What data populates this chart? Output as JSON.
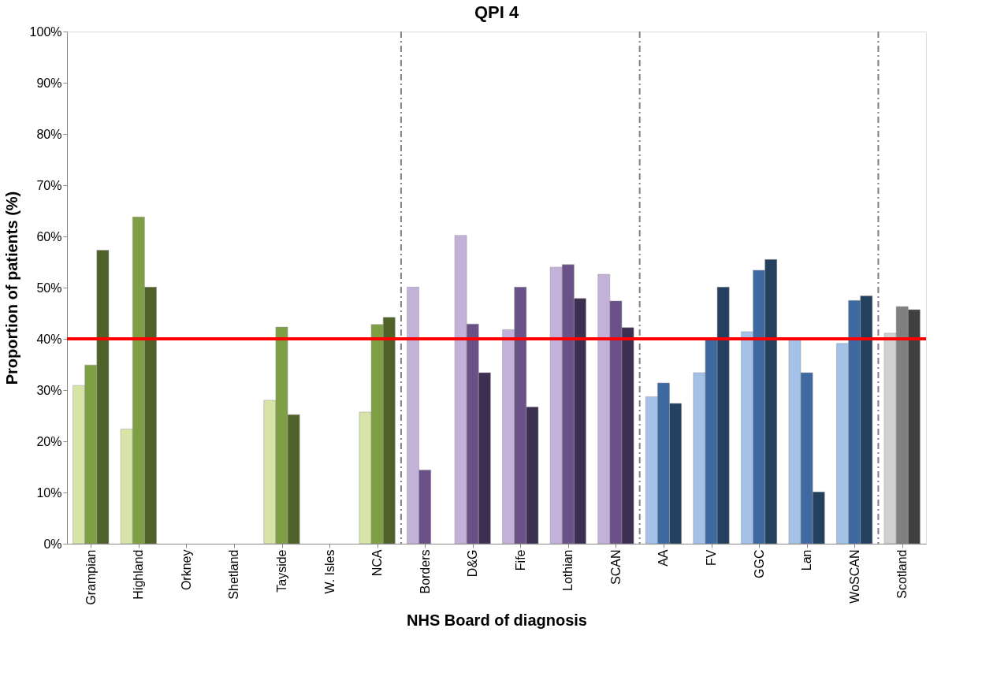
{
  "chart_data": {
    "type": "bar",
    "title": "QPI 4",
    "xlabel": "NHS Board of diagnosis",
    "ylabel": "Proportion of patients (%)",
    "categories": [
      "Grampian",
      "Highland",
      "Orkney",
      "Shetland",
      "Tayside",
      "W. Isles",
      "NCA",
      "Borders",
      "D&G",
      "Fife",
      "Lothian",
      "SCAN",
      "AA",
      "FV",
      "GGC",
      "Lan",
      "WoSCAN",
      "Scotland"
    ],
    "series": [
      {
        "values": [
          30.9,
          22.4,
          null,
          null,
          28.0,
          null,
          25.7,
          50.1,
          60.2,
          41.8,
          54.0,
          52.6,
          28.7,
          33.4,
          41.4,
          40.0,
          39.1,
          41.1
        ],
        "colors": [
          "#d7e4a8",
          "#d7e4a8",
          "#d7e4a8",
          "#d7e4a8",
          "#d7e4a8",
          "#d7e4a8",
          "#d7e4a8",
          "#c3b1d9",
          "#c3b1d9",
          "#c3b1d9",
          "#c3b1d9",
          "#c3b1d9",
          "#a4c2e8",
          "#a4c2e8",
          "#a4c2e8",
          "#a4c2e8",
          "#a4c2e8",
          "#d0d0d0"
        ]
      },
      {
        "values": [
          34.9,
          63.8,
          null,
          null,
          42.3,
          null,
          42.8,
          14.4,
          42.9,
          50.1,
          54.5,
          47.4,
          31.4,
          40.0,
          53.4,
          33.4,
          47.5,
          46.3
        ],
        "colors": [
          "#7f9f45",
          "#7f9f45",
          "#7f9f45",
          "#7f9f45",
          "#7f9f45",
          "#7f9f45",
          "#7f9f45",
          "#6a5289",
          "#6a5289",
          "#6a5289",
          "#6a5289",
          "#6a5289",
          "#3e6aa1",
          "#3e6aa1",
          "#3e6aa1",
          "#3e6aa1",
          "#3e6aa1",
          "#808080"
        ]
      },
      {
        "values": [
          57.3,
          50.1,
          null,
          null,
          25.2,
          null,
          44.2,
          null,
          33.4,
          26.7,
          47.9,
          42.2,
          27.4,
          50.1,
          55.5,
          10.1,
          48.4,
          45.7
        ],
        "colors": [
          "#4f6228",
          "#4f6228",
          "#4f6228",
          "#4f6228",
          "#4f6228",
          "#4f6228",
          "#4f6228",
          "#3d2f52",
          "#3d2f52",
          "#3d2f52",
          "#3d2f52",
          "#3d2f52",
          "#23405f",
          "#23405f",
          "#23405f",
          "#23405f",
          "#23405f",
          "#404040"
        ]
      }
    ],
    "ylim": [
      0,
      100
    ],
    "yticks": [
      {
        "value": 0,
        "label": "0%"
      },
      {
        "value": 10,
        "label": "10%"
      },
      {
        "value": 20,
        "label": "20%"
      },
      {
        "value": 30,
        "label": "30%"
      },
      {
        "value": 40,
        "label": "40%"
      },
      {
        "value": 50,
        "label": "50%"
      },
      {
        "value": 60,
        "label": "60%"
      },
      {
        "value": 70,
        "label": "70%"
      },
      {
        "value": 80,
        "label": "80%"
      },
      {
        "value": 90,
        "label": "90%"
      },
      {
        "value": 100,
        "label": "100%"
      }
    ],
    "ref_lines": [
      {
        "axis": "y",
        "value": 40,
        "color": "#ff0000",
        "line_style": "solid"
      }
    ],
    "grid": false
  }
}
